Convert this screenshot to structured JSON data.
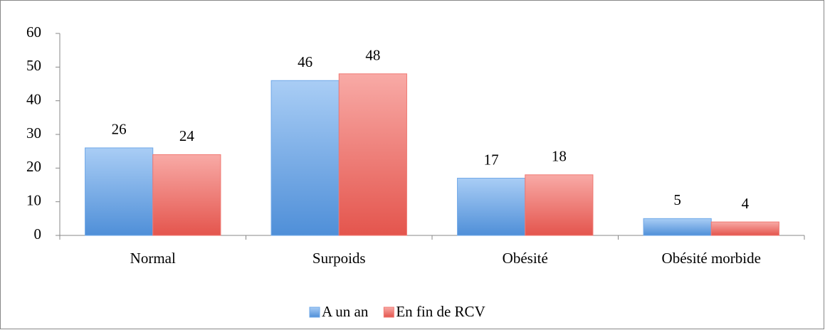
{
  "chart_data": {
    "type": "bar",
    "categories": [
      "Normal",
      "Surpoids",
      "Obésité",
      "Obésité morbide"
    ],
    "series": [
      {
        "name": "A un an",
        "color": "#6fa8e8",
        "values": [
          26,
          46,
          17,
          5
        ]
      },
      {
        "name": "En fin de RCV",
        "color": "#f07872",
        "values": [
          24,
          48,
          18,
          4
        ]
      }
    ],
    "ylim": [
      0,
      60
    ],
    "yticks": [
      0,
      10,
      20,
      30,
      40,
      50,
      60
    ],
    "grid": false,
    "legend": "bottom"
  }
}
